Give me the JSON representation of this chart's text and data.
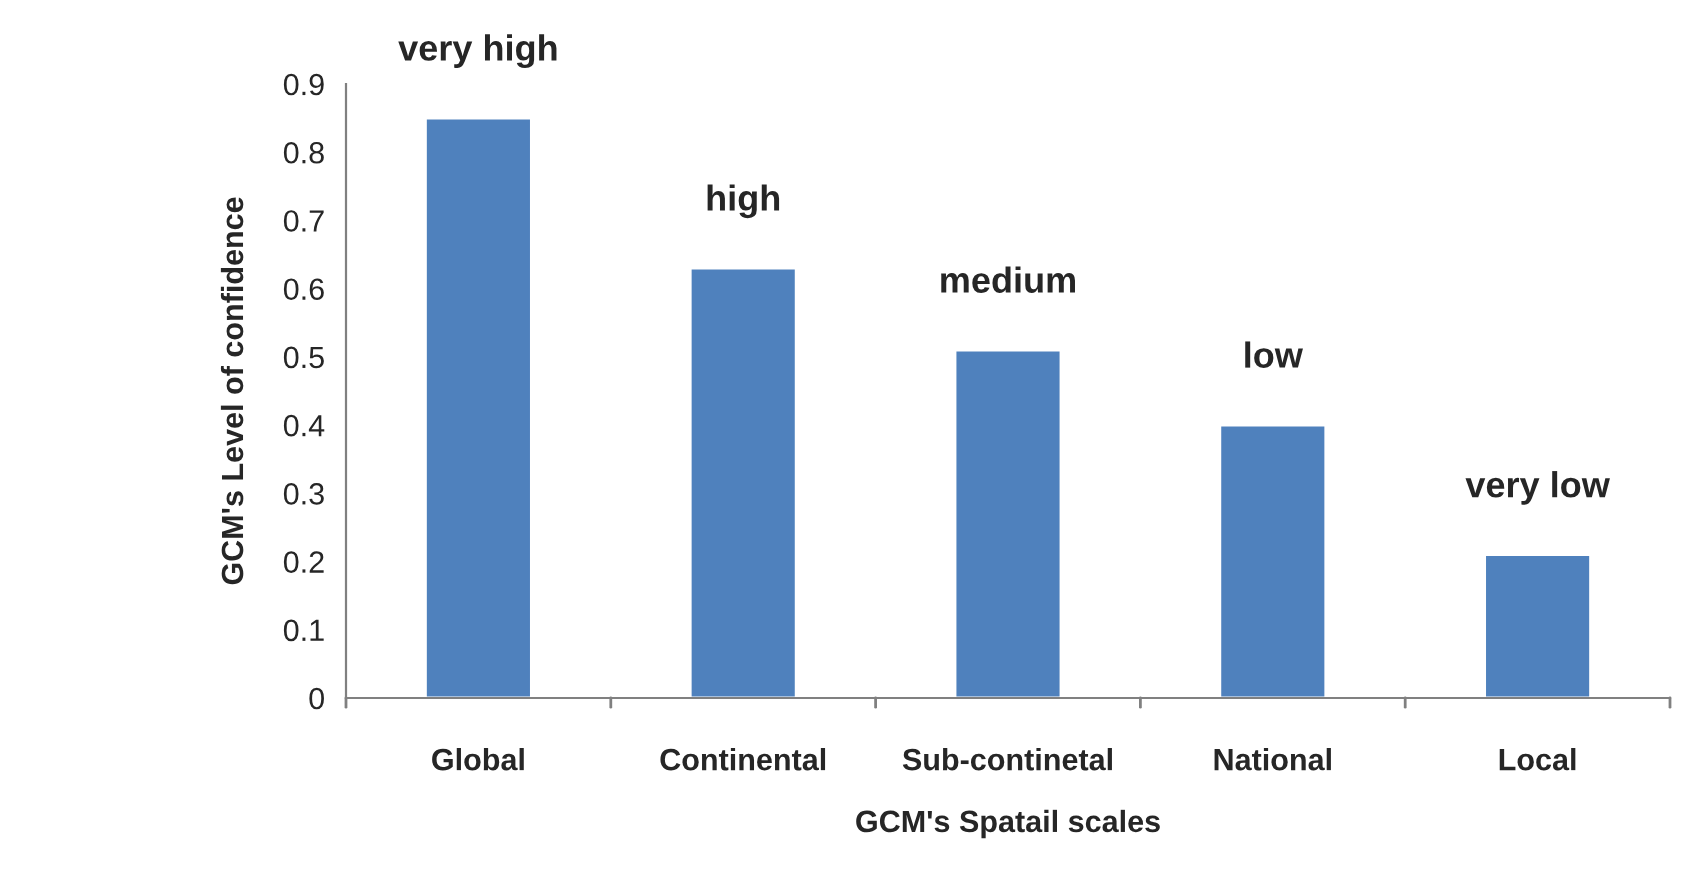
{
  "chart_data": {
    "type": "bar",
    "xlabel": "GCM's Spatail scales",
    "ylabel": "GCM's Level of confidence",
    "categories": [
      "Global",
      "Continental",
      "Sub-continetal",
      "National",
      "Local"
    ],
    "values": [
      0.85,
      0.63,
      0.51,
      0.4,
      0.21
    ],
    "value_labels": [
      "very high",
      "high",
      "medium",
      "low",
      "very low"
    ],
    "color": "#4f81bd",
    "ylim": [
      0,
      0.9
    ],
    "yticks": [
      {
        "value": 0,
        "label": "0"
      },
      0.1,
      0.2,
      0.3,
      0.4,
      0.5,
      0.6,
      0.7,
      0.8,
      0.9
    ],
    "grid": false
  }
}
